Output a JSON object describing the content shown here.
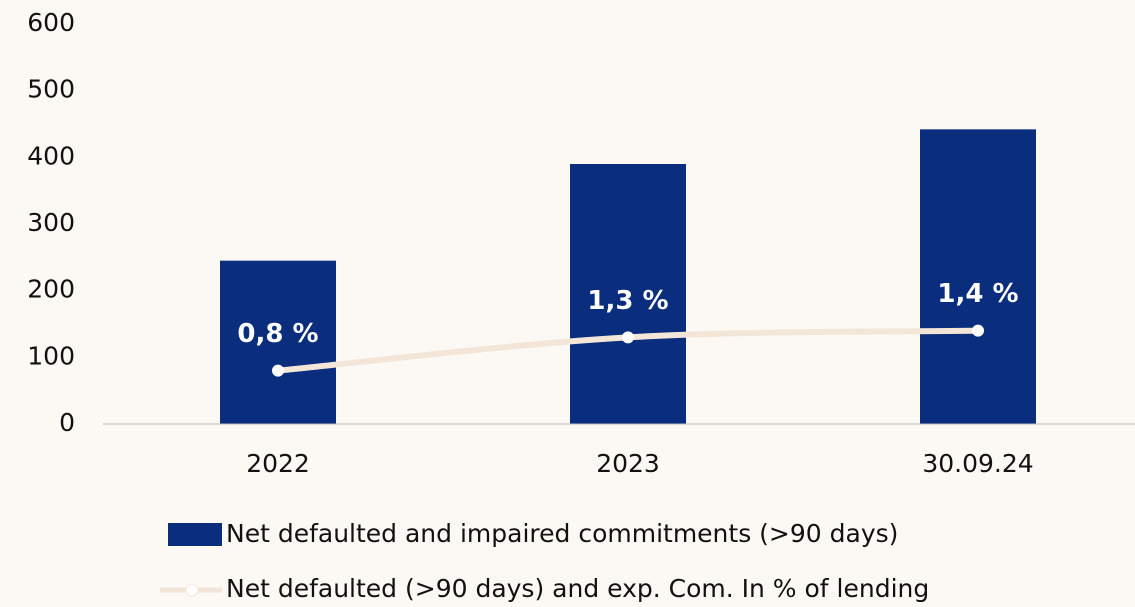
{
  "chart_data": {
    "type": "bar_line",
    "categories": [
      "2022",
      "2023",
      "30.09.24"
    ],
    "ylim": [
      0,
      600
    ],
    "yticks": [
      0,
      100,
      200,
      300,
      400,
      500,
      600
    ],
    "y2lim": [
      0,
      6
    ],
    "series": [
      {
        "name": "Net defaulted and impaired commitments (>90 days)",
        "type": "bar",
        "color": "#0a2d7d",
        "values": [
          245,
          390,
          442
        ]
      },
      {
        "name": "Net defaulted (>90 days) and exp. Com. In % of lending",
        "type": "line",
        "axis": "y2",
        "color": "#f3e6d8",
        "values": [
          0.8,
          1.3,
          1.4
        ],
        "value_labels": [
          "0,8 %",
          "1,3 %",
          "1,4 %"
        ]
      }
    ]
  }
}
